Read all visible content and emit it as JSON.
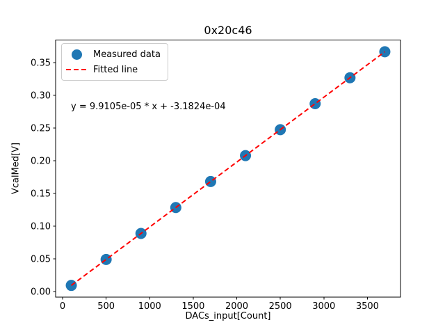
{
  "figure": {
    "title": "0x20c46",
    "xlabel": "DACs_input[Count]",
    "ylabel": "VcalMed[V]",
    "annotation": "y = 9.9105e-05 * x + -3.1824e-04"
  },
  "legend": {
    "position": "upper left",
    "items": [
      {
        "label": "Measured data",
        "marker": "circle",
        "color": "#1f77b4"
      },
      {
        "label": "Fitted line",
        "marker": "dashed-line",
        "color": "#ff0000"
      }
    ]
  },
  "chart_data": {
    "type": "scatter",
    "title": "0x20c46",
    "xlabel": "DACs_input[Count]",
    "ylabel": "VcalMed[V]",
    "series": [
      {
        "name": "Measured data",
        "type": "scatter",
        "color": "#1f77b4",
        "marker_size_px": 16,
        "x": [
          100,
          500,
          900,
          1300,
          1700,
          2100,
          2500,
          2900,
          3300,
          3700
        ],
        "y": [
          0.0096,
          0.0492,
          0.0889,
          0.1285,
          0.1682,
          0.2078,
          0.2474,
          0.2871,
          0.3267,
          0.3664
        ]
      },
      {
        "name": "Fitted line",
        "type": "line",
        "style": "dashed",
        "color": "#ff0000",
        "slope": 9.9105e-05,
        "intercept": -0.00031824,
        "x_range": [
          100,
          3700
        ]
      }
    ],
    "annotation": "y = 9.9105e-05 * x + -3.1824e-04",
    "xticks": [
      0,
      500,
      1000,
      1500,
      2000,
      2500,
      3000,
      3500
    ],
    "yticks": [
      0.0,
      0.05,
      0.1,
      0.15,
      0.2,
      0.25,
      0.3,
      0.35
    ],
    "ytick_labels": [
      "0.00",
      "0.05",
      "0.10",
      "0.15",
      "0.20",
      "0.25",
      "0.30",
      "0.35"
    ],
    "xlim": [
      -80,
      3880
    ],
    "ylim": [
      -0.0085,
      0.3842
    ],
    "grid": false,
    "legend_position": "upper left",
    "axis_color": "#000000"
  }
}
